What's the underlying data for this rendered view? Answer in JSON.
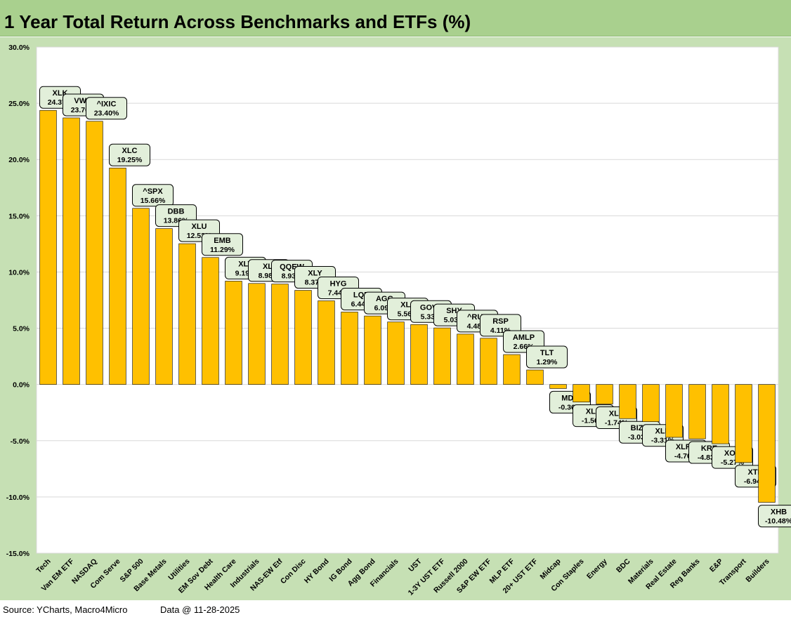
{
  "title": "1 Year Total Return Across Benchmarks and ETFs (%)",
  "footer": {
    "source": "Source: YCharts, Macro4Micro",
    "date": "Data @ 11-28-2025"
  },
  "colors": {
    "bar": "#ffc000",
    "bar_stroke": "#000000",
    "label_fill": "#e2efda",
    "plot_bg": "#ffffff",
    "frame_bg": "#c6e0b4",
    "title_bg": "#a9d08e"
  },
  "chart_data": {
    "type": "bar",
    "title": "1 Year Total Return Across Benchmarks and ETFs (%)",
    "xlabel": "",
    "ylabel": "",
    "ylim": [
      -15,
      30
    ],
    "ytick_step": 5,
    "ytick_format": "percent_1dp",
    "grid": true,
    "legend": "none",
    "categories": [
      "Tech",
      "Van EM ETF",
      "NASDAQ",
      "Com Serve",
      "S&P 500",
      "Base Metals",
      "Utilities",
      "EM Sov Debt",
      "Health Care",
      "Industrials",
      "NAS-EW Etf",
      "Con Disc",
      "HY Bond",
      "IG Bond",
      "Agg Bond",
      "Financials",
      "UST",
      "1-3Y UST ETF",
      "Russell 2000",
      "S&P EW ETF",
      "MLP ETF",
      "20+ UST ETF",
      "Midcap",
      "Con Staples",
      "Energy",
      "BDC",
      "Materials",
      "Real Estate",
      "Reg Banks",
      "E&P",
      "Transport",
      "Builders"
    ],
    "tickers": [
      "XLK",
      "VWO",
      "^IXIC",
      "XLC",
      "^SPX",
      "DBB",
      "XLU",
      "EMB",
      "XLV",
      "XLI",
      "QQEW",
      "XLY",
      "HYG",
      "LQD",
      "AGG",
      "XLF",
      "GOVT",
      "SHY",
      "^RUT",
      "RSP",
      "AMLP",
      "TLT",
      "MDY",
      "XLP",
      "XLE",
      "BIZD",
      "XLB",
      "XLRE",
      "KRE",
      "XOP",
      "XTN",
      "XHB"
    ],
    "values": [
      24.37,
      23.7,
      23.4,
      19.25,
      15.66,
      13.86,
      12.52,
      11.29,
      9.19,
      8.98,
      8.93,
      8.37,
      7.44,
      6.44,
      6.09,
      5.56,
      5.33,
      5.03,
      4.48,
      4.11,
      2.66,
      1.29,
      -0.36,
      -1.56,
      -1.74,
      -3.03,
      -3.31,
      -4.7,
      -4.83,
      -5.27,
      -6.94,
      -10.48
    ],
    "value_labels": [
      "24.37%",
      "23.70%",
      "23.40%",
      "19.25%",
      "15.66%",
      "13.86%",
      "12.52%",
      "11.29%",
      "9.19%",
      "8.98%",
      "8.93%",
      "8.37%",
      "7.44%",
      "6.44%",
      "6.09%",
      "5.56%",
      "5.33%",
      "5.03%",
      "4.48%",
      "4.11%",
      "2.66%",
      "1.29%",
      "-0.36%",
      "-1.56%",
      "-1.74%",
      "-3.03%",
      "-3.31%",
      "-4.70%",
      "-4.83%",
      "-5.27%",
      "-6.94%",
      "-10.48%"
    ]
  }
}
